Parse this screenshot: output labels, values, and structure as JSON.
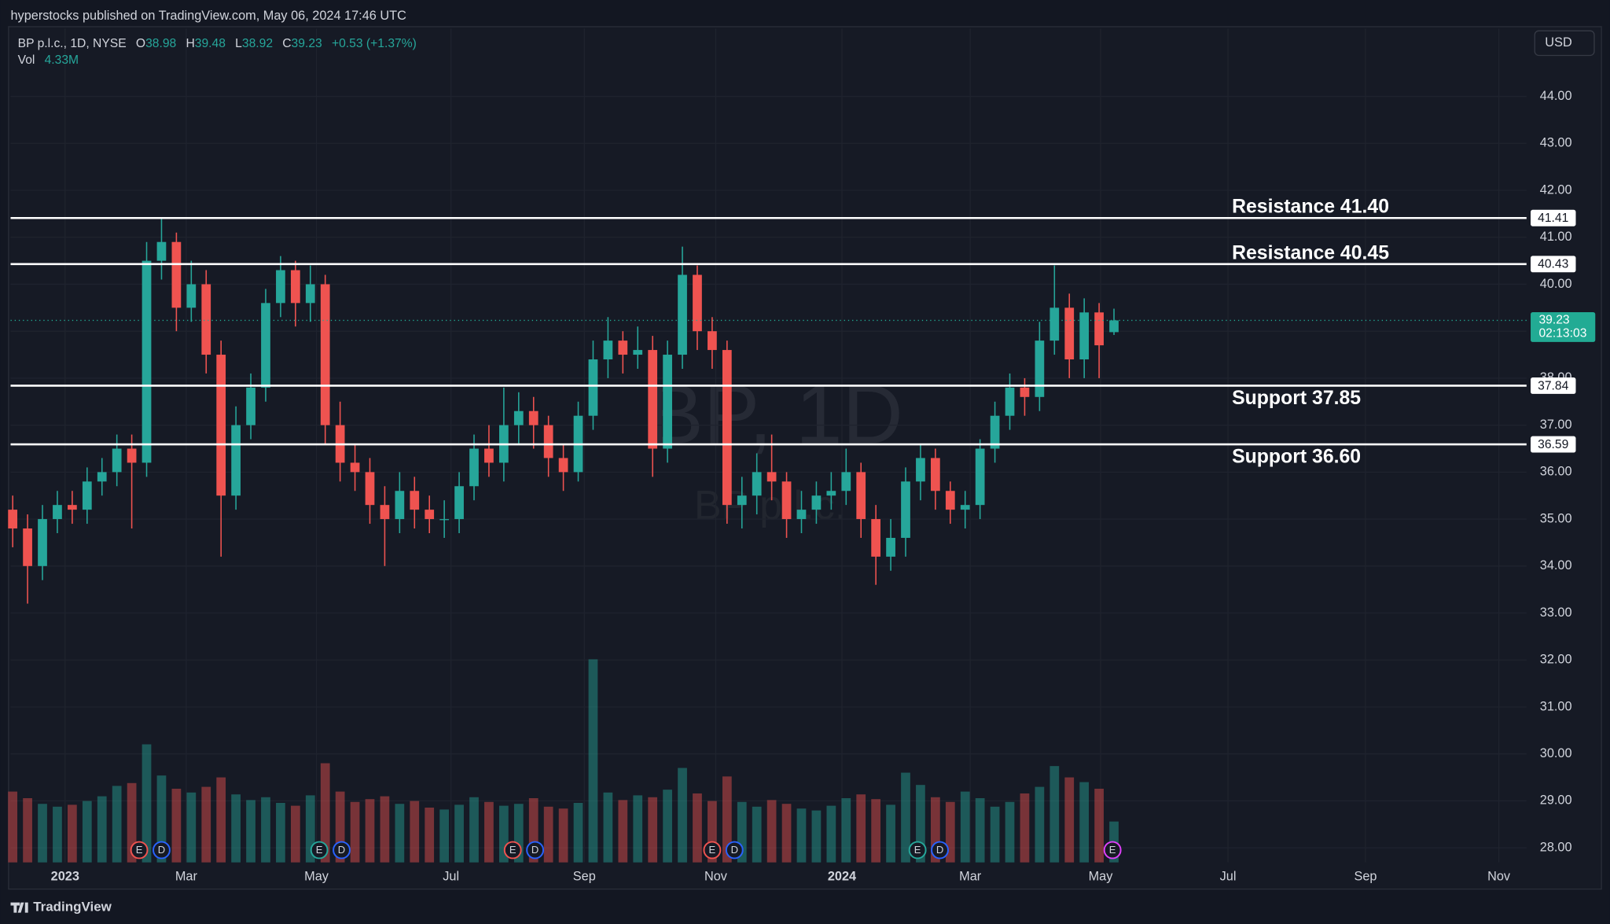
{
  "header": {
    "publisher": "hyperstocks published on TradingView.com, May 06, 2024 17:46 UTC"
  },
  "footer": {
    "brand": "TradingView"
  },
  "chart_data": {
    "type": "candlestick",
    "symbol": "BP p.l.c., 1D, NYSE",
    "ohlc_legend": [
      {
        "label": "O",
        "value": 38.98
      },
      {
        "label": "H",
        "value": 39.48
      },
      {
        "label": "L",
        "value": 38.92
      },
      {
        "label": "C",
        "value": 39.23
      }
    ],
    "change": "+0.53 (+1.37%)",
    "volume_legend": {
      "label": "Vol",
      "value": "4.33M"
    },
    "currency": "USD",
    "watermark": {
      "title": "BP, 1D",
      "subtitle": "BP p.l.c."
    },
    "open": [
      35.2,
      34.8,
      34.0,
      35.0,
      35.3,
      35.2,
      35.8,
      36.0,
      36.5,
      36.2,
      40.5,
      40.9,
      39.5,
      40.0,
      38.5,
      35.5,
      37.0,
      37.8,
      39.6,
      40.3,
      39.6,
      40.0,
      37.0,
      36.2,
      36.0,
      35.3,
      35.0,
      35.6,
      35.2,
      35.0,
      35.0,
      35.7,
      36.5,
      36.2,
      37.0,
      37.3,
      37.0,
      36.3,
      36.0,
      37.2,
      38.4,
      38.8,
      38.5,
      38.6,
      36.5,
      38.5,
      40.2,
      39.0,
      38.6,
      35.3,
      35.5,
      36.0,
      35.8,
      35.0,
      35.2,
      35.5,
      35.6,
      36.0,
      35.0,
      34.2,
      34.6,
      35.8,
      36.3,
      35.6,
      35.2,
      35.3,
      36.5,
      37.2,
      37.8,
      37.6,
      38.8,
      39.5,
      38.4,
      39.4,
      38.98
    ],
    "high": [
      35.5,
      35.1,
      35.3,
      35.6,
      35.6,
      36.1,
      36.3,
      36.8,
      36.8,
      40.9,
      41.4,
      41.1,
      40.5,
      40.3,
      38.8,
      37.4,
      38.1,
      39.9,
      40.6,
      40.5,
      40.4,
      40.2,
      37.5,
      36.6,
      36.3,
      35.7,
      36.0,
      35.9,
      35.5,
      35.4,
      36.0,
      36.8,
      37.0,
      37.8,
      37.7,
      37.6,
      37.2,
      36.6,
      37.5,
      38.8,
      39.3,
      39.0,
      39.1,
      38.9,
      38.8,
      40.8,
      40.4,
      39.3,
      38.8,
      35.9,
      36.4,
      36.8,
      36.0,
      35.6,
      35.8,
      36.0,
      36.5,
      36.2,
      35.3,
      35.0,
      36.1,
      36.6,
      36.5,
      35.8,
      35.6,
      36.7,
      37.5,
      38.1,
      38.0,
      39.2,
      40.4,
      39.8,
      39.7,
      39.6,
      39.48
    ],
    "low": [
      34.4,
      33.2,
      33.7,
      34.7,
      34.9,
      34.9,
      35.5,
      35.7,
      34.8,
      35.9,
      40.1,
      39.0,
      39.2,
      38.1,
      34.2,
      35.2,
      36.7,
      37.5,
      39.3,
      39.1,
      39.2,
      36.6,
      35.8,
      35.6,
      34.9,
      34.0,
      34.7,
      34.8,
      34.7,
      34.6,
      34.7,
      35.4,
      35.9,
      35.8,
      36.6,
      36.5,
      35.9,
      35.6,
      35.8,
      36.9,
      38.0,
      38.1,
      38.2,
      35.9,
      36.2,
      38.2,
      38.6,
      38.2,
      34.9,
      34.8,
      35.1,
      35.4,
      34.6,
      34.7,
      34.9,
      35.2,
      35.3,
      34.6,
      33.6,
      33.9,
      34.2,
      35.4,
      35.2,
      34.9,
      34.8,
      35.0,
      36.2,
      36.9,
      37.2,
      37.3,
      38.5,
      38.0,
      38.0,
      38.0,
      38.92
    ],
    "close": [
      34.8,
      34.0,
      35.0,
      35.3,
      35.2,
      35.8,
      36.0,
      36.5,
      36.2,
      40.5,
      40.9,
      39.5,
      40.0,
      38.5,
      35.5,
      37.0,
      37.8,
      39.6,
      40.3,
      39.6,
      40.0,
      37.0,
      36.2,
      36.0,
      35.3,
      35.0,
      35.6,
      35.2,
      35.0,
      35.0,
      35.7,
      36.5,
      36.2,
      37.0,
      37.3,
      37.0,
      36.3,
      36.0,
      37.2,
      38.4,
      38.8,
      38.5,
      38.6,
      36.5,
      38.5,
      40.2,
      39.0,
      38.6,
      35.3,
      35.5,
      36.0,
      35.8,
      35.0,
      35.2,
      35.5,
      35.6,
      36.0,
      35.0,
      34.2,
      34.6,
      35.8,
      36.3,
      35.6,
      35.2,
      35.3,
      36.5,
      37.2,
      37.8,
      37.6,
      38.8,
      39.5,
      38.4,
      39.4,
      38.7,
      39.23
    ],
    "volume": [
      7.5,
      6.8,
      6.2,
      5.9,
      6.1,
      6.5,
      7.0,
      8.1,
      8.4,
      12.5,
      9.2,
      7.8,
      7.4,
      8.0,
      9.0,
      7.2,
      6.6,
      6.9,
      6.3,
      6.0,
      7.1,
      10.5,
      7.5,
      6.4,
      6.7,
      7.0,
      6.2,
      6.5,
      5.8,
      5.6,
      6.1,
      6.9,
      6.4,
      6.0,
      6.2,
      6.8,
      5.9,
      5.7,
      6.3,
      21.5,
      7.4,
      6.6,
      7.1,
      6.9,
      7.7,
      10.0,
      7.3,
      6.5,
      9.1,
      6.4,
      5.9,
      6.6,
      6.2,
      5.7,
      5.5,
      6.0,
      6.8,
      7.2,
      6.7,
      6.1,
      9.5,
      8.2,
      6.9,
      6.4,
      7.5,
      6.8,
      5.9,
      6.4,
      7.3,
      8.0,
      10.2,
      9.0,
      8.5,
      7.8,
      4.33
    ],
    "up_color": "#26a69a",
    "down_color": "#ef5350",
    "xlim": [
      -0.14,
      101.72
    ],
    "xticks": [
      {
        "value": 3.52,
        "label": "2023"
      },
      {
        "value": 11.66,
        "label": "Mar"
      },
      {
        "value": 20.41,
        "label": "May"
      },
      {
        "value": 29.45,
        "label": "Jul"
      },
      {
        "value": 38.41,
        "label": "Sep"
      },
      {
        "value": 47.24,
        "label": "Nov"
      },
      {
        "value": 55.72,
        "label": "2024"
      },
      {
        "value": 64.34,
        "label": "Mar"
      },
      {
        "value": 73.1,
        "label": "May"
      },
      {
        "value": 81.66,
        "label": "Jul"
      },
      {
        "value": 90.9,
        "label": "Sep"
      },
      {
        "value": 99.86,
        "label": "Nov"
      }
    ],
    "ylim": [
      27.69,
      45.44
    ],
    "yticks": [
      {
        "value": 28,
        "label": "28.00"
      },
      {
        "value": 29,
        "label": "29.00"
      },
      {
        "value": 30,
        "label": "30.00"
      },
      {
        "value": 31,
        "label": "31.00"
      },
      {
        "value": 32,
        "label": "32.00"
      },
      {
        "value": 33,
        "label": "33.00"
      },
      {
        "value": 34,
        "label": "34.00"
      },
      {
        "value": 35,
        "label": "35.00"
      },
      {
        "value": 36,
        "label": "36.00"
      },
      {
        "value": 37,
        "label": "37.00"
      },
      {
        "value": 38,
        "label": "38.00"
      },
      {
        "value": 39,
        "label": "39.00"
      },
      {
        "value": 40,
        "label": "40.00"
      },
      {
        "value": 41,
        "label": "41.00"
      },
      {
        "value": 42,
        "label": "42.00"
      },
      {
        "value": 43,
        "label": "43.00"
      },
      {
        "value": 44,
        "label": "44.00"
      }
    ],
    "vlim": [
      0,
      25
    ],
    "grid": true,
    "levels": [
      {
        "value": 41.41,
        "text": "Resistance 41.40"
      },
      {
        "value": 40.43,
        "text": "Resistance 40.45"
      },
      {
        "value": 37.84,
        "text": "Support 37.85"
      },
      {
        "value": 36.59,
        "text": "Support 36.60"
      }
    ],
    "last_price": {
      "value": 39.23,
      "countdown": "02:13:03",
      "color": "#22ab94"
    },
    "events": [
      {
        "label": "E",
        "x": 8.5,
        "color": "#ef5350"
      },
      {
        "label": "D",
        "x": 10.0,
        "color": "#2962ff"
      },
      {
        "label": "E",
        "x": 20.6,
        "color": "#26a69a"
      },
      {
        "label": "D",
        "x": 22.1,
        "color": "#2962ff"
      },
      {
        "label": "E",
        "x": 33.6,
        "color": "#ef5350"
      },
      {
        "label": "D",
        "x": 35.1,
        "color": "#2962ff"
      },
      {
        "label": "E",
        "x": 47.0,
        "color": "#ef5350"
      },
      {
        "label": "D",
        "x": 48.5,
        "color": "#2962ff"
      },
      {
        "label": "E",
        "x": 60.8,
        "color": "#26a69a"
      },
      {
        "label": "D",
        "x": 62.3,
        "color": "#2962ff"
      },
      {
        "label": "E",
        "x": 73.9,
        "color": "#e040fb"
      }
    ]
  }
}
